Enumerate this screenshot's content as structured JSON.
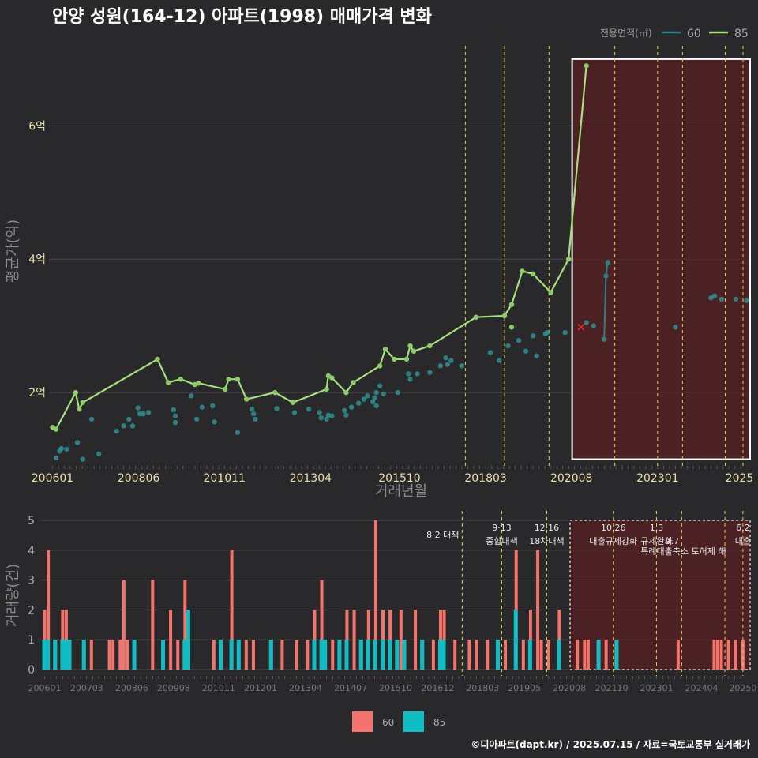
{
  "title": "안양 성원(164-12) 아파트(1998) 매매가격 변화",
  "credit": "©디아파트(dapt.kr) / 2025.07.15 / 자료=국토교통부 실거래가",
  "colors": {
    "s60_line": "#2c7f82",
    "s60_point": "#2f8f8f",
    "s85_line": "#a6e07c",
    "s85_point": "#8ccc6a",
    "bar60": "#f4736c",
    "bar85": "#0fbec4",
    "policy_line": "#e7d23a",
    "highlight_fill": "#5a1e22",
    "marker_x": "#e0301e"
  },
  "chart_data": [
    {
      "type": "line",
      "name": "price",
      "xlabel": "거래년월",
      "ylabel": "평균가(억)",
      "legend_title": "전용면적(㎡)",
      "legend_position": "top-right",
      "x_ticks": [
        "200601",
        "200806",
        "201011",
        "201304",
        "201510",
        "201803",
        "202008",
        "202301",
        "2025"
      ],
      "y_ticks": [
        "2억",
        "4억",
        "6억"
      ],
      "y_tick_values": [
        2,
        4,
        6
      ],
      "xlim": [
        2005.9,
        2025.6
      ],
      "ylim": [
        0.9,
        7.2
      ],
      "policy_dates": [
        2017.6,
        2018.7,
        2019.95,
        2021.8,
        2023.0,
        2023.7,
        2024.9,
        2025.4
      ],
      "highlight": {
        "x_from": 2020.6,
        "x_to": 2025.6,
        "y_from": 1.0,
        "y_to": 7.0
      },
      "marker_x": {
        "x": 2020.85,
        "y": 2.98
      },
      "series": [
        {
          "name": "60",
          "points": [
            [
              2006.1,
              1.02
            ],
            [
              2006.2,
              1.12
            ],
            [
              2006.25,
              1.16
            ],
            [
              2006.4,
              1.15
            ],
            [
              2006.7,
              1.25
            ],
            [
              2006.85,
              1.0
            ],
            [
              2007.1,
              1.6
            ],
            [
              2007.3,
              1.08
            ],
            [
              2007.8,
              1.42
            ],
            [
              2008.0,
              1.5
            ],
            [
              2008.15,
              1.6
            ],
            [
              2008.25,
              1.5
            ],
            [
              2008.4,
              1.77
            ],
            [
              2008.45,
              1.68
            ],
            [
              2008.55,
              1.68
            ],
            [
              2008.7,
              1.7
            ],
            [
              2009.4,
              1.74
            ],
            [
              2009.45,
              1.65
            ],
            [
              2009.45,
              1.55
            ],
            [
              2009.9,
              1.95
            ],
            [
              2010.05,
              1.6
            ],
            [
              2010.2,
              1.78
            ],
            [
              2010.5,
              1.8
            ],
            [
              2010.55,
              1.56
            ],
            [
              2011.2,
              1.4
            ],
            [
              2011.6,
              1.75
            ],
            [
              2011.65,
              1.68
            ],
            [
              2011.7,
              1.6
            ],
            [
              2012.3,
              1.76
            ],
            [
              2012.8,
              1.7
            ],
            [
              2013.2,
              1.75
            ],
            [
              2013.5,
              1.7
            ],
            [
              2013.55,
              1.62
            ],
            [
              2013.7,
              1.6
            ],
            [
              2013.75,
              1.66
            ],
            [
              2013.85,
              1.65
            ],
            [
              2014.2,
              1.73
            ],
            [
              2014.25,
              1.66
            ],
            [
              2014.4,
              1.78
            ],
            [
              2014.6,
              1.84
            ],
            [
              2014.75,
              1.9
            ],
            [
              2014.85,
              1.95
            ],
            [
              2015.0,
              1.86
            ],
            [
              2015.05,
              1.92
            ],
            [
              2015.1,
              1.8
            ],
            [
              2015.1,
              2.0
            ],
            [
              2015.2,
              2.1
            ],
            [
              2015.3,
              1.98
            ],
            [
              2015.7,
              2.0
            ],
            [
              2016.0,
              2.28
            ],
            [
              2016.05,
              2.2
            ],
            [
              2016.25,
              2.28
            ],
            [
              2016.6,
              2.3
            ],
            [
              2016.9,
              2.4
            ],
            [
              2017.05,
              2.52
            ],
            [
              2017.1,
              2.42
            ],
            [
              2017.2,
              2.48
            ],
            [
              2017.5,
              2.4
            ],
            [
              2018.3,
              2.6
            ],
            [
              2018.55,
              2.48
            ],
            [
              2018.8,
              2.7
            ],
            [
              2019.1,
              2.78
            ],
            [
              2019.3,
              2.62
            ],
            [
              2019.5,
              2.85
            ],
            [
              2019.6,
              2.55
            ],
            [
              2019.85,
              2.88
            ],
            [
              2019.9,
              2.9
            ],
            [
              2020.4,
              2.9
            ],
            [
              2021.0,
              3.05
            ],
            [
              2021.2,
              3.0
            ],
            [
              2021.5,
              2.8
            ],
            [
              2021.55,
              3.75
            ],
            [
              2021.6,
              3.95
            ],
            [
              2023.5,
              2.98
            ],
            [
              2024.5,
              3.42
            ],
            [
              2024.6,
              3.45
            ],
            [
              2024.8,
              3.4
            ],
            [
              2025.2,
              3.4
            ],
            [
              2025.5,
              3.38
            ]
          ],
          "line": [
            [
              2021.5,
              2.8
            ],
            [
              2021.55,
              3.75
            ],
            [
              2021.6,
              3.95
            ]
          ]
        },
        {
          "name": "85",
          "line": [
            [
              2006.0,
              1.48
            ],
            [
              2006.1,
              1.45
            ],
            [
              2006.65,
              2.0
            ],
            [
              2006.75,
              1.75
            ],
            [
              2006.85,
              1.85
            ],
            [
              2008.95,
              2.5
            ],
            [
              2009.25,
              2.15
            ],
            [
              2009.6,
              2.2
            ],
            [
              2010.0,
              2.12
            ],
            [
              2010.1,
              2.14
            ],
            [
              2010.85,
              2.05
            ],
            [
              2010.95,
              2.2
            ],
            [
              2011.2,
              2.2
            ],
            [
              2011.45,
              1.9
            ],
            [
              2012.25,
              2.0
            ],
            [
              2012.75,
              1.85
            ],
            [
              2013.7,
              2.05
            ],
            [
              2013.75,
              2.25
            ],
            [
              2013.85,
              2.22
            ],
            [
              2014.25,
              2.0
            ],
            [
              2014.45,
              2.15
            ],
            [
              2015.2,
              2.4
            ],
            [
              2015.35,
              2.65
            ],
            [
              2015.6,
              2.5
            ],
            [
              2015.95,
              2.5
            ],
            [
              2016.05,
              2.7
            ],
            [
              2016.15,
              2.62
            ],
            [
              2016.6,
              2.7
            ],
            [
              2017.9,
              3.13
            ],
            [
              2018.7,
              3.15
            ],
            [
              2018.9,
              3.32
            ],
            [
              2019.2,
              3.82
            ],
            [
              2019.5,
              3.78
            ],
            [
              2020.0,
              3.5
            ],
            [
              2020.5,
              4.0
            ],
            [
              2021.0,
              6.9
            ]
          ],
          "extra_points": [
            [
              2018.9,
              2.98
            ]
          ]
        }
      ]
    },
    {
      "type": "bar",
      "name": "volume",
      "xlabel": "",
      "ylabel": "거래량(건)",
      "x_ticks": [
        "200601",
        "200703",
        "200806",
        "200908",
        "201011",
        "201201",
        "201304",
        "201407",
        "201510",
        "201612",
        "201803",
        "201905",
        "202008",
        "202110",
        "202301",
        "202404",
        "20250"
      ],
      "y_ticks": [
        "0",
        "1",
        "2",
        "3",
        "4",
        "5"
      ],
      "ylim": [
        0,
        5
      ],
      "legend": [
        "60",
        "85"
      ],
      "legend_position": "bottom",
      "highlight": {
        "x_from": 2020.6,
        "x_to": 2025.6
      },
      "bars": [
        [
          2006.0,
          2,
          1
        ],
        [
          2006.1,
          4,
          1
        ],
        [
          2006.3,
          1,
          1
        ],
        [
          2006.5,
          2,
          1
        ],
        [
          2006.6,
          2,
          1
        ],
        [
          2006.7,
          1,
          1
        ],
        [
          2007.1,
          1,
          1
        ],
        [
          2007.3,
          1,
          0
        ],
        [
          2007.8,
          1,
          0
        ],
        [
          2007.9,
          1,
          0
        ],
        [
          2008.1,
          1,
          0
        ],
        [
          2008.2,
          3,
          0
        ],
        [
          2008.3,
          1,
          0
        ],
        [
          2008.5,
          1,
          1
        ],
        [
          2009.0,
          3,
          0
        ],
        [
          2009.3,
          1,
          1
        ],
        [
          2009.5,
          2,
          0
        ],
        [
          2009.7,
          1,
          0
        ],
        [
          2009.9,
          3,
          1
        ],
        [
          2010.0,
          1,
          2
        ],
        [
          2010.7,
          1,
          0
        ],
        [
          2010.9,
          1,
          1
        ],
        [
          2011.2,
          4,
          1
        ],
        [
          2011.4,
          1,
          1
        ],
        [
          2011.6,
          1,
          0
        ],
        [
          2011.8,
          1,
          0
        ],
        [
          2012.3,
          1,
          1
        ],
        [
          2012.6,
          1,
          0
        ],
        [
          2013.0,
          1,
          0
        ],
        [
          2013.3,
          1,
          0
        ],
        [
          2013.5,
          2,
          1
        ],
        [
          2013.7,
          3,
          1
        ],
        [
          2013.8,
          1,
          1
        ],
        [
          2014.0,
          1,
          0
        ],
        [
          2014.2,
          1,
          1
        ],
        [
          2014.4,
          2,
          1
        ],
        [
          2014.6,
          2,
          0
        ],
        [
          2014.8,
          1,
          1
        ],
        [
          2015.0,
          2,
          1
        ],
        [
          2015.2,
          5,
          1
        ],
        [
          2015.4,
          2,
          1
        ],
        [
          2015.6,
          2,
          1
        ],
        [
          2015.8,
          1,
          1
        ],
        [
          2015.9,
          2,
          0
        ],
        [
          2016.0,
          1,
          1
        ],
        [
          2016.3,
          2,
          0
        ],
        [
          2016.5,
          1,
          1
        ],
        [
          2016.8,
          1,
          0
        ],
        [
          2017.0,
          2,
          1
        ],
        [
          2017.1,
          2,
          1
        ],
        [
          2017.4,
          1,
          0
        ],
        [
          2017.8,
          1,
          0
        ],
        [
          2018.0,
          1,
          0
        ],
        [
          2018.3,
          1,
          0
        ],
        [
          2018.6,
          1,
          1
        ],
        [
          2018.8,
          1,
          0
        ],
        [
          2019.1,
          4,
          2
        ],
        [
          2019.3,
          1,
          0
        ],
        [
          2019.5,
          2,
          1
        ],
        [
          2019.7,
          4,
          0
        ],
        [
          2019.8,
          1,
          0
        ],
        [
          2020.0,
          1,
          0
        ],
        [
          2020.3,
          2,
          1
        ],
        [
          2020.8,
          1,
          0
        ],
        [
          2021.0,
          1,
          0
        ],
        [
          2021.1,
          1,
          0
        ],
        [
          2021.4,
          1,
          1
        ],
        [
          2021.6,
          1,
          0
        ],
        [
          2021.9,
          1,
          1
        ],
        [
          2023.6,
          1,
          0
        ],
        [
          2024.6,
          1,
          0
        ],
        [
          2024.7,
          1,
          0
        ],
        [
          2024.8,
          1,
          0
        ],
        [
          2025.0,
          1,
          0
        ],
        [
          2025.2,
          1,
          0
        ],
        [
          2025.4,
          1,
          0
        ]
      ],
      "annotations": [
        {
          "date": "8·2",
          "label": "대책",
          "x": 2017.6,
          "row": 1
        },
        {
          "date": "9·13",
          "label": "종합대책",
          "x": 2018.7,
          "row": 0
        },
        {
          "date": "12·16",
          "label": "18차대책",
          "x": 2019.95,
          "row": 0
        },
        {
          "date": "10.26",
          "label": "대출규제강화",
          "x": 2021.8,
          "row": 0
        },
        {
          "date": "1.3",
          "label": "규제완화",
          "x": 2023.0,
          "row": 0
        },
        {
          "date": "9.7",
          "label": "특례대출축소 토허제 해",
          "x": 2023.7,
          "row": 2
        },
        {
          "date": "6.2",
          "label": "대출",
          "x": 2025.4,
          "row": 0
        }
      ]
    }
  ]
}
